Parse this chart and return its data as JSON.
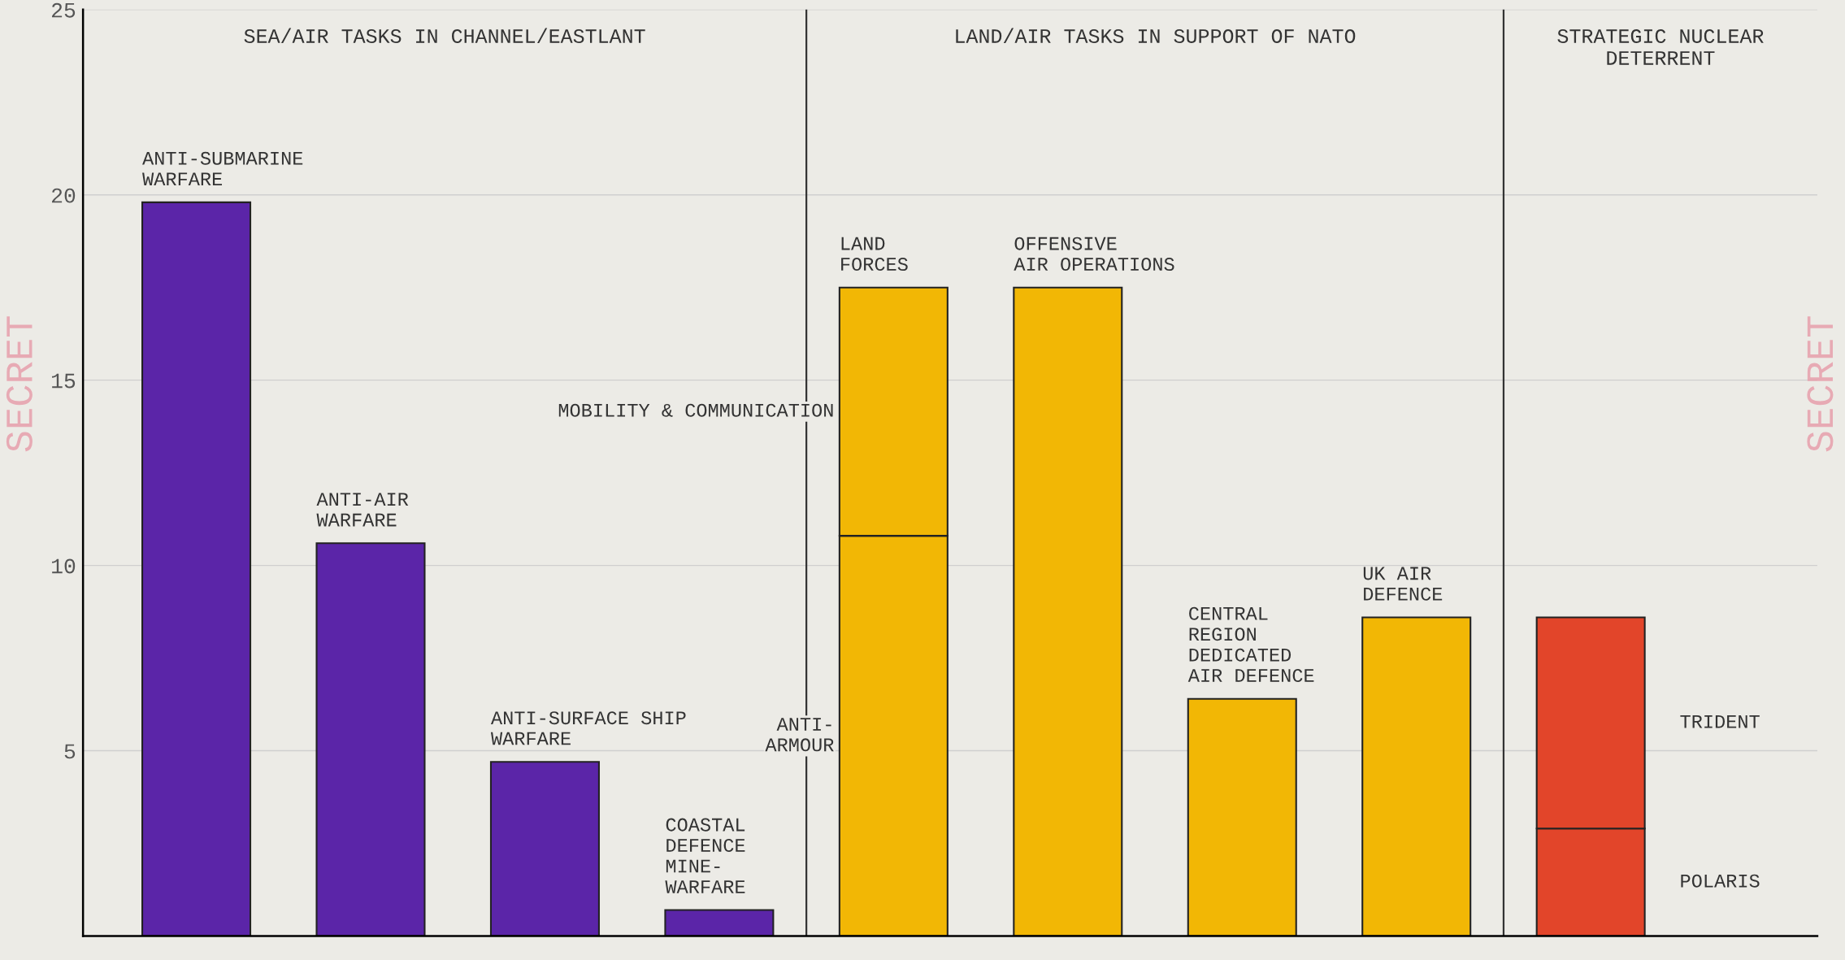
{
  "chart_data": {
    "type": "bar",
    "stacked": true,
    "categories": [
      null,
      null,
      null,
      null,
      null,
      null,
      null,
      null,
      null
    ],
    "series": [
      {
        "color": "#5b25a8",
        "values": [
          19.8,
          10.6,
          4.7,
          0.7,
          null,
          null,
          null,
          null,
          null
        ]
      },
      {
        "name": "ANTI-\nARMOUR",
        "color": "#f2b705",
        "values": [
          null,
          null,
          null,
          null,
          10.8,
          null,
          null,
          null,
          null
        ]
      },
      {
        "color": "#f2b705",
        "values": [
          null,
          null,
          null,
          null,
          null,
          17.5,
          6.4,
          8.6,
          null
        ]
      },
      {
        "name": "MOBILITY & COMMUNICATION",
        "color": "#f2b705",
        "values": [
          null,
          null,
          null,
          null,
          6.7,
          null,
          null,
          null,
          null
        ]
      },
      {
        "name": "POLARIS",
        "color": "#e2452a",
        "values": [
          null,
          null,
          null,
          null,
          null,
          null,
          null,
          null,
          2.9
        ]
      },
      {
        "name": "TRIDENT",
        "color": "#e2452a",
        "values": [
          null,
          null,
          null,
          null,
          null,
          null,
          null,
          null,
          5.7
        ]
      }
    ],
    "ylim": [
      0,
      25
    ],
    "yticks": [
      5,
      10,
      15,
      20,
      25
    ],
    "grid": "y",
    "annotations": [
      "SEA/AIR TASKS IN CHANNEL/EASTLANT",
      "LAND/AIR TASKS IN SUPPORT OF NATO",
      "STRATEGIC NUCLEAR\nDETERRENT",
      "SECRET",
      "SECRET",
      "ANTI-SUBMARINE\nWARFARE",
      "ANTI-AIR\nWARFARE",
      "ANTI-SURFACE SHIP\nWARFARE",
      "COASTAL\nDEFENCE\nMINE-\nWARFARE",
      "LAND\nFORCES",
      "OFFENSIVE\nAIR OPERATIONS",
      "CENTRAL\nREGION\nDEDICATED\nAIR DEFENCE",
      "UK AIR\nDEFENCE"
    ]
  }
}
